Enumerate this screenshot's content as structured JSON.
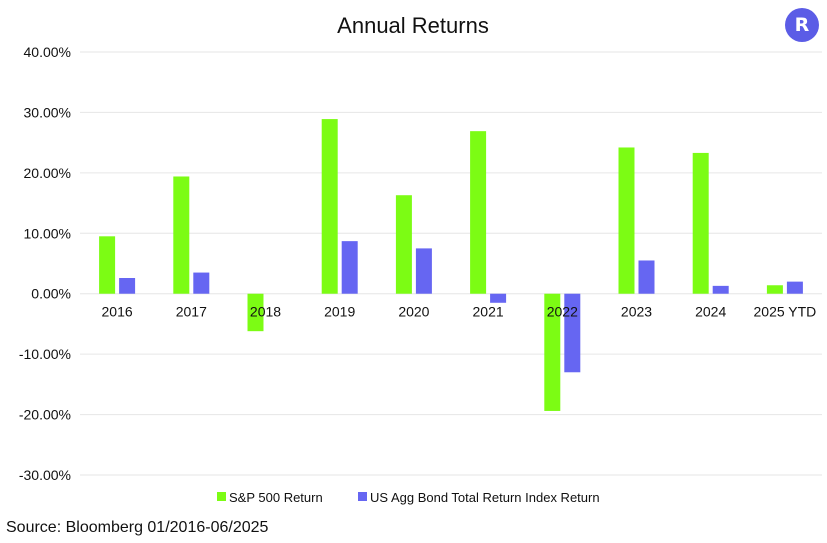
{
  "logo": {
    "letter": "R"
  },
  "source": "Source: Bloomberg 01/2016-06/2025",
  "colors": {
    "sp500": "#7cfc14",
    "bond": "#6666f2",
    "grid": "#e6e6e6"
  },
  "chart_data": {
    "type": "bar",
    "title": "Annual Returns",
    "xlabel": "",
    "ylabel": "",
    "ylim": [
      -30,
      40
    ],
    "ytick_values": [
      40,
      30,
      20,
      10,
      0,
      -10,
      -20,
      -30
    ],
    "ytick_labels": [
      "40.00%",
      "30.00%",
      "20.00%",
      "10.00%",
      "0.00%",
      "-10.00%",
      "-20.00%",
      "-30.00%"
    ],
    "grid": true,
    "legend_position": "bottom",
    "categories": [
      "2016",
      "2017",
      "2018",
      "2019",
      "2020",
      "2021",
      "2022",
      "2023",
      "2024",
      "2025 YTD"
    ],
    "series": [
      {
        "name": "S&P 500 Return",
        "color": "#7cfc14",
        "values": [
          9.5,
          19.4,
          -6.2,
          28.9,
          16.3,
          26.9,
          -19.4,
          24.2,
          23.3,
          1.4
        ]
      },
      {
        "name": "US Agg Bond Total Return Index Return",
        "color": "#6666f2",
        "values": [
          2.6,
          3.5,
          0.0,
          8.7,
          7.5,
          -1.5,
          -13.0,
          5.5,
          1.3,
          2.0
        ]
      }
    ]
  }
}
